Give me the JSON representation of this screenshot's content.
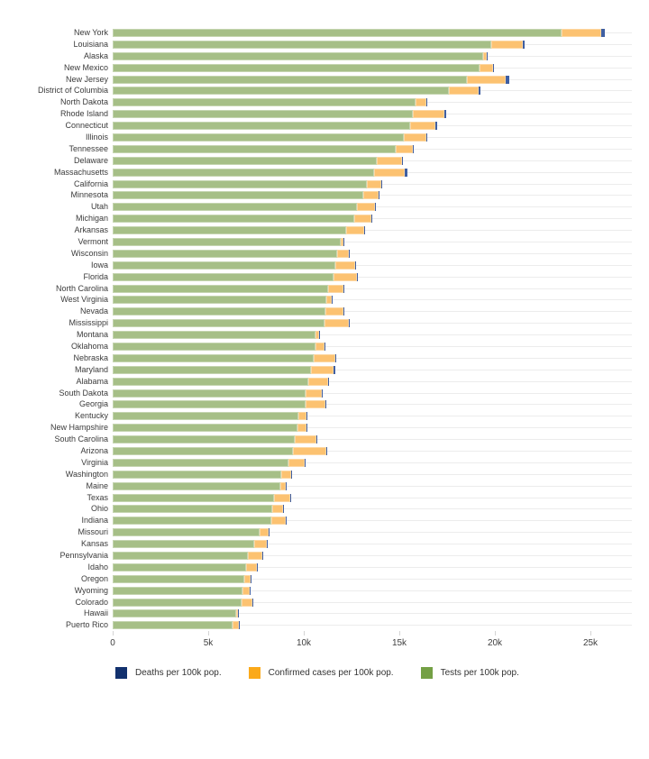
{
  "chart_data": {
    "type": "bar",
    "orientation": "horizontal",
    "stacked": true,
    "title": "",
    "xlabel": "",
    "ylabel": "",
    "grid": "horizontal-row-rules",
    "legend_position": "bottom",
    "xlim": [
      0,
      27170
    ],
    "x_ticks": [
      "0",
      "5k",
      "10k",
      "15k",
      "20k",
      "25k"
    ],
    "x_tick_values": [
      0,
      5000,
      10000,
      15000,
      20000,
      25000
    ],
    "series_order_in_bar": [
      "tests",
      "cases",
      "deaths"
    ],
    "legend": [
      {
        "key": "deaths",
        "label": "Deaths per 100k pop.",
        "swatch_color": "#12316e",
        "bar_color": "#3f5fa2"
      },
      {
        "key": "cases",
        "label": "Confirmed cases per 100k pop.",
        "swatch_color": "#fba919",
        "bar_color": "#fcc271"
      },
      {
        "key": "tests",
        "label": "Tests per 100k pop.",
        "swatch_color": "#74a045",
        "bar_color": "#a6bf87"
      }
    ],
    "states": [
      {
        "name": "New York",
        "tests": 23500,
        "cases": 2080,
        "deaths": 185
      },
      {
        "name": "Louisiana",
        "tests": 19800,
        "cases": 1650,
        "deaths": 105
      },
      {
        "name": "Alaska",
        "tests": 19400,
        "cases": 170,
        "deaths": 8
      },
      {
        "name": "New Mexico",
        "tests": 19200,
        "cases": 710,
        "deaths": 30
      },
      {
        "name": "New Jersey",
        "tests": 18550,
        "cases": 2030,
        "deaths": 180
      },
      {
        "name": "District of Columbia",
        "tests": 17600,
        "cases": 1560,
        "deaths": 90
      },
      {
        "name": "North Dakota",
        "tests": 15850,
        "cases": 565,
        "deaths": 15
      },
      {
        "name": "Rhode Island",
        "tests": 15700,
        "cases": 1650,
        "deaths": 95
      },
      {
        "name": "Connecticut",
        "tests": 15550,
        "cases": 1320,
        "deaths": 125
      },
      {
        "name": "Illinois",
        "tests": 15250,
        "cases": 1180,
        "deaths": 55
      },
      {
        "name": "Tennessee",
        "tests": 14800,
        "cases": 895,
        "deaths": 15
      },
      {
        "name": "Delaware",
        "tests": 13800,
        "cases": 1320,
        "deaths": 60
      },
      {
        "name": "Massachusetts",
        "tests": 13680,
        "cases": 1600,
        "deaths": 125
      },
      {
        "name": "California",
        "tests": 13300,
        "cases": 755,
        "deaths": 25
      },
      {
        "name": "Minnesota",
        "tests": 13100,
        "cases": 800,
        "deaths": 35
      },
      {
        "name": "Utah",
        "tests": 12800,
        "cases": 945,
        "deaths": 10
      },
      {
        "name": "Michigan",
        "tests": 12640,
        "cases": 895,
        "deaths": 65
      },
      {
        "name": "Arkansas",
        "tests": 12200,
        "cases": 945,
        "deaths": 15
      },
      {
        "name": "Vermont",
        "tests": 11950,
        "cases": 140,
        "deaths": 10
      },
      {
        "name": "Wisconsin",
        "tests": 11750,
        "cases": 615,
        "deaths": 20
      },
      {
        "name": "Iowa",
        "tests": 11650,
        "cases": 1040,
        "deaths": 35
      },
      {
        "name": "Florida",
        "tests": 11550,
        "cases": 1230,
        "deaths": 30
      },
      {
        "name": "North Carolina",
        "tests": 11280,
        "cases": 800,
        "deaths": 20
      },
      {
        "name": "West Virginia",
        "tests": 11180,
        "cases": 285,
        "deaths": 10
      },
      {
        "name": "Nevada",
        "tests": 11130,
        "cases": 945,
        "deaths": 25
      },
      {
        "name": "Mississippi",
        "tests": 11080,
        "cases": 1270,
        "deaths": 60
      },
      {
        "name": "Montana",
        "tests": 10620,
        "cases": 190,
        "deaths": 8
      },
      {
        "name": "Oklahoma",
        "tests": 10600,
        "cases": 470,
        "deaths": 20
      },
      {
        "name": "Nebraska",
        "tests": 10500,
        "cases": 1130,
        "deaths": 15
      },
      {
        "name": "Maryland",
        "tests": 10380,
        "cases": 1180,
        "deaths": 95
      },
      {
        "name": "Alabama",
        "tests": 10220,
        "cases": 1040,
        "deaths": 30
      },
      {
        "name": "South Dakota",
        "tests": 10100,
        "cases": 850,
        "deaths": 15
      },
      {
        "name": "Georgia",
        "tests": 10080,
        "cases": 1040,
        "deaths": 65
      },
      {
        "name": "Kentucky",
        "tests": 9720,
        "cases": 425,
        "deaths": 25
      },
      {
        "name": "New Hampshire",
        "tests": 9680,
        "cases": 470,
        "deaths": 35
      },
      {
        "name": "South Carolina",
        "tests": 9520,
        "cases": 1130,
        "deaths": 30
      },
      {
        "name": "Arizona",
        "tests": 9430,
        "cases": 1745,
        "deaths": 40
      },
      {
        "name": "Virginia",
        "tests": 9200,
        "cases": 850,
        "deaths": 30
      },
      {
        "name": "Washington",
        "tests": 8820,
        "cases": 520,
        "deaths": 25
      },
      {
        "name": "Maine",
        "tests": 8780,
        "cases": 285,
        "deaths": 10
      },
      {
        "name": "Texas",
        "tests": 8440,
        "cases": 850,
        "deaths": 20
      },
      {
        "name": "Ohio",
        "tests": 8350,
        "cases": 565,
        "deaths": 30
      },
      {
        "name": "Indiana",
        "tests": 8300,
        "cases": 755,
        "deaths": 55
      },
      {
        "name": "Missouri",
        "tests": 7690,
        "cases": 470,
        "deaths": 25
      },
      {
        "name": "Kansas",
        "tests": 7400,
        "cases": 660,
        "deaths": 15
      },
      {
        "name": "Pennsylvania",
        "tests": 7080,
        "cases": 755,
        "deaths": 60
      },
      {
        "name": "Idaho",
        "tests": 6980,
        "cases": 565,
        "deaths": 10
      },
      {
        "name": "Oregon",
        "tests": 6890,
        "cases": 330,
        "deaths": 10
      },
      {
        "name": "Wyoming",
        "tests": 6790,
        "cases": 375,
        "deaths": 5
      },
      {
        "name": "Colorado",
        "tests": 6740,
        "cases": 565,
        "deaths": 40
      },
      {
        "name": "Hawaii",
        "tests": 6460,
        "cases": 95,
        "deaths": 5
      },
      {
        "name": "Puerto Rico",
        "tests": 6270,
        "cases": 330,
        "deaths": 15
      }
    ]
  }
}
